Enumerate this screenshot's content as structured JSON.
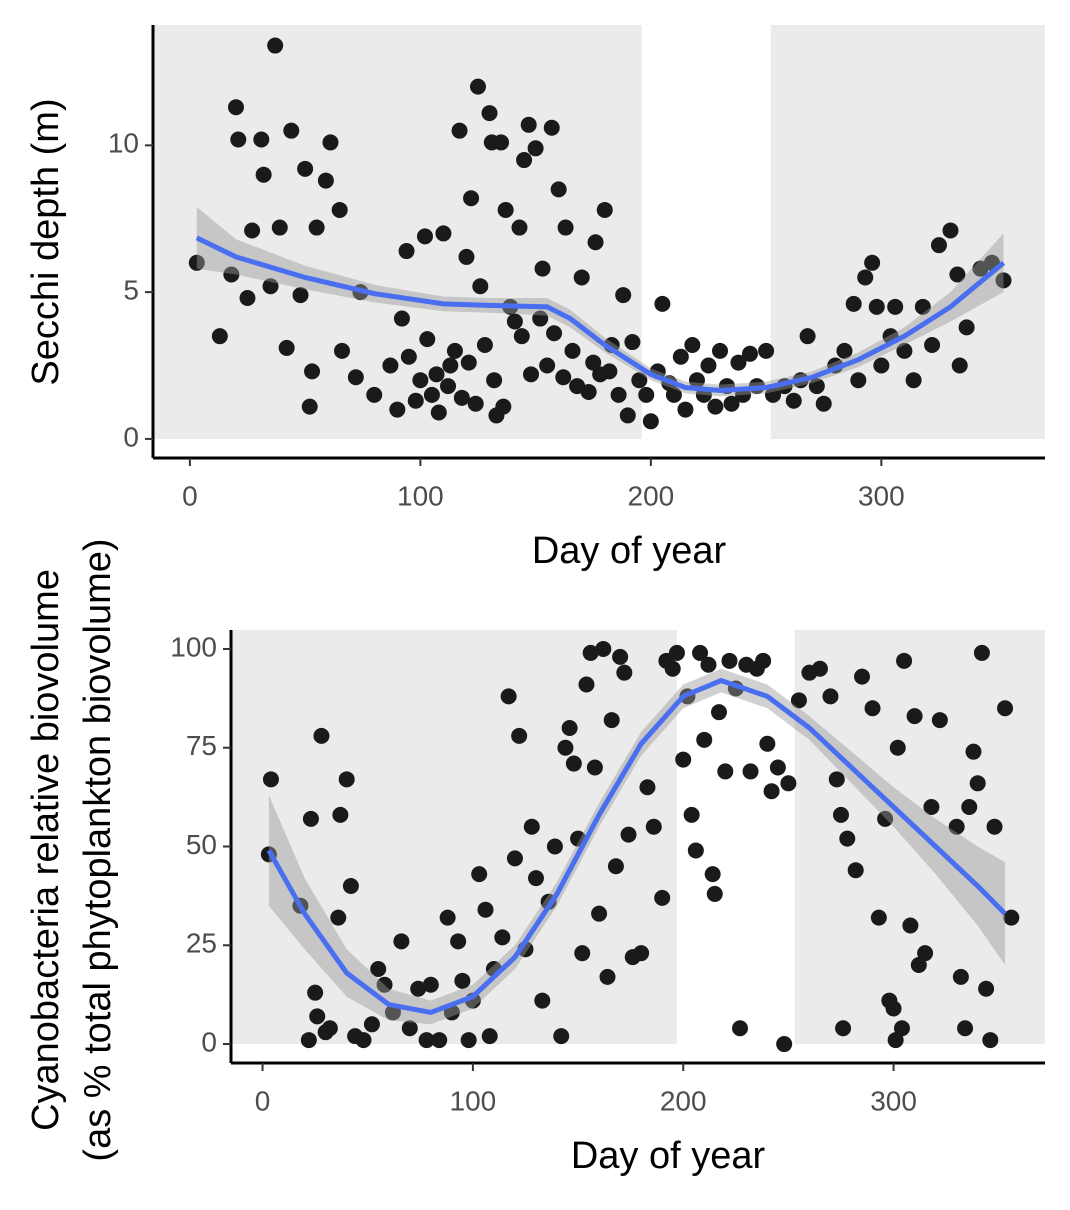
{
  "chart_data": [
    {
      "type": "scatter",
      "x_label": "Day of year",
      "y_label": [
        "Secchi depth (m)"
      ],
      "xlim": [
        -16,
        371
      ],
      "ylim": [
        -0.65,
        14.1
      ],
      "xticks": [
        0,
        100,
        200,
        300
      ],
      "yticks": [
        0,
        5,
        10
      ],
      "shaded_regions": [
        [
          -16,
          196
        ],
        [
          252,
          371
        ]
      ],
      "shade_color": "#ebebeb",
      "series": [
        {
          "color": "#1a1a1a",
          "x": [
            3,
            13,
            18,
            20,
            21,
            25,
            27,
            31,
            32,
            35,
            37,
            39,
            42,
            44,
            48,
            50,
            52,
            53,
            55,
            59,
            61,
            65,
            66,
            72,
            74,
            80,
            87,
            90,
            92,
            94,
            100,
            102,
            105,
            108,
            110,
            113,
            117,
            120,
            122,
            125,
            126,
            130,
            131,
            133,
            135,
            137,
            141,
            143,
            145,
            147,
            150,
            153,
            155,
            157,
            160,
            163,
            166,
            170,
            173,
            176,
            178,
            180,
            183,
            186,
            188,
            190,
            192,
            195,
            198,
            200,
            203,
            205,
            208,
            210,
            213,
            215,
            218,
            220,
            223,
            225,
            228,
            230,
            233,
            235,
            238,
            240,
            243,
            246,
            250,
            253,
            258,
            262,
            265,
            268,
            272,
            275,
            280,
            284,
            288,
            290,
            293,
            296,
            298,
            300,
            304,
            306,
            310,
            314,
            318,
            322,
            325,
            330,
            333,
            334,
            337,
            343,
            348,
            353,
            95,
            98,
            103,
            107,
            112,
            115,
            118,
            121,
            124,
            128,
            132,
            136,
            139,
            144,
            148,
            152,
            158,
            162,
            168,
            175,
            182
          ],
          "values": [
            6,
            3.5,
            5.6,
            11.3,
            10.2,
            4.8,
            7.1,
            10.2,
            9,
            5.2,
            13.4,
            7.2,
            3.1,
            10.5,
            4.9,
            9.2,
            1.1,
            2.3,
            7.2,
            8.8,
            10.1,
            7.8,
            3,
            2.1,
            5,
            1.5,
            2.5,
            1,
            4.1,
            6.4,
            2,
            6.9,
            1.5,
            0.9,
            7,
            2.5,
            10.5,
            6.2,
            8.2,
            12,
            5.2,
            11.1,
            10.1,
            0.8,
            10.1,
            7.8,
            4,
            7.2,
            9.5,
            10.7,
            9.9,
            5.8,
            2.5,
            10.6,
            8.5,
            7.2,
            3,
            5.5,
            1.6,
            6.7,
            2.2,
            7.8,
            3.2,
            1.5,
            4.9,
            0.8,
            3.3,
            2,
            1.5,
            0.6,
            2.3,
            4.6,
            1.9,
            1.5,
            2.8,
            1,
            3.2,
            2,
            1.5,
            2.5,
            1.1,
            3,
            1.8,
            1.2,
            2.6,
            1.5,
            2.9,
            1.8,
            3,
            1.5,
            1.8,
            1.3,
            2,
            3.5,
            1.8,
            1.2,
            2.5,
            3,
            4.6,
            2,
            5.5,
            6,
            4.5,
            2.5,
            3.5,
            4.5,
            3,
            2,
            4.5,
            3.2,
            6.6,
            7.1,
            5.6,
            2.5,
            3.8,
            5.8,
            6,
            5.4,
            2.8,
            1.3,
            3.4,
            2.2,
            1.8,
            3,
            1.4,
            2.6,
            1.2,
            3.2,
            2,
            1.1,
            4.5,
            3.5,
            2.2,
            4.1,
            3.6,
            2.1,
            1.8,
            2.6,
            2.3
          ]
        }
      ],
      "smooth": {
        "color": "#4a6ef0",
        "band_color": "#999999",
        "x": [
          3,
          20,
          50,
          80,
          110,
          130,
          155,
          165,
          180,
          200,
          215,
          230,
          250,
          270,
          290,
          310,
          330,
          353
        ],
        "y": [
          6.85,
          6.2,
          5.5,
          4.95,
          4.6,
          4.55,
          4.5,
          4.1,
          3.2,
          2.2,
          1.75,
          1.65,
          1.75,
          2.1,
          2.7,
          3.5,
          4.5,
          6
        ],
        "lower": [
          5.8,
          5.6,
          5.1,
          4.65,
          4.35,
          4.3,
          4.2,
          3.8,
          2.95,
          2,
          1.55,
          1.45,
          1.55,
          1.9,
          2.45,
          3.2,
          4,
          5
        ],
        "upper": [
          7.9,
          6.8,
          5.9,
          5.25,
          4.85,
          4.8,
          4.8,
          4.4,
          3.45,
          2.4,
          1.95,
          1.85,
          1.95,
          2.3,
          2.95,
          3.8,
          5,
          7
        ]
      }
    },
    {
      "type": "scatter",
      "x_label": "Day of year",
      "y_label": [
        "Cyanobacteria relative biovolume",
        "(as % total phytoplankton biovolume)"
      ],
      "xlim": [
        -15,
        372
      ],
      "ylim": [
        -4.8,
        104.8
      ],
      "xticks": [
        0,
        100,
        200,
        300
      ],
      "yticks": [
        0,
        25,
        50,
        75,
        100
      ],
      "shaded_regions": [
        [
          -15,
          197
        ],
        [
          253,
          372
        ]
      ],
      "shade_color": "#ebebeb",
      "series": [
        {
          "color": "#1a1a1a",
          "x": [
            3,
            4,
            18,
            22,
            23,
            25,
            26,
            28,
            30,
            32,
            36,
            37,
            40,
            42,
            44,
            48,
            52,
            55,
            58,
            62,
            66,
            70,
            74,
            78,
            80,
            84,
            88,
            90,
            93,
            95,
            98,
            100,
            103,
            106,
            108,
            110,
            114,
            117,
            120,
            122,
            125,
            128,
            130,
            133,
            136,
            139,
            142,
            144,
            146,
            148,
            150,
            152,
            154,
            156,
            158,
            160,
            162,
            164,
            166,
            168,
            170,
            172,
            174,
            176,
            180,
            183,
            186,
            190,
            192,
            195,
            197,
            200,
            202,
            204,
            206,
            208,
            210,
            212,
            214,
            215,
            217,
            220,
            222,
            225,
            227,
            230,
            232,
            235,
            238,
            240,
            242,
            245,
            248,
            250,
            255,
            260,
            265,
            270,
            273,
            275,
            276,
            278,
            282,
            285,
            290,
            293,
            296,
            298,
            300,
            301,
            302,
            304,
            305,
            308,
            310,
            312,
            315,
            318,
            322,
            330,
            332,
            334,
            336,
            338,
            340,
            342,
            344,
            346,
            348,
            353,
            356
          ],
          "values": [
            48,
            67,
            35,
            1,
            57,
            13,
            7,
            78,
            3,
            4,
            32,
            58,
            67,
            40,
            2,
            1,
            5,
            19,
            15,
            8,
            26,
            4,
            14,
            1,
            15,
            1,
            32,
            8,
            26,
            16,
            1,
            11,
            43,
            34,
            2,
            19,
            27,
            88,
            47,
            78,
            24,
            55,
            42,
            11,
            36,
            50,
            2,
            75,
            80,
            71,
            52,
            23,
            91,
            99,
            70,
            33,
            100,
            17,
            82,
            45,
            98,
            94,
            53,
            22,
            23,
            65,
            55,
            37,
            97,
            95,
            99,
            72,
            88,
            58,
            49,
            99,
            77,
            96,
            43,
            38,
            84,
            69,
            97,
            90,
            4,
            96,
            69,
            95,
            97,
            76,
            64,
            70,
            0,
            66,
            87,
            94,
            95,
            88,
            67,
            58,
            4,
            52,
            44,
            93,
            85,
            32,
            57,
            11,
            9,
            1,
            75,
            4,
            97,
            30,
            83,
            20,
            23,
            60,
            82,
            55,
            17,
            4,
            60,
            74,
            66,
            99,
            14,
            1,
            55,
            85,
            32
          ]
        }
      ],
      "smooth": {
        "color": "#4a6ef0",
        "band_color": "#999999",
        "x": [
          3,
          20,
          40,
          60,
          80,
          100,
          120,
          140,
          160,
          180,
          200,
          218,
          240,
          260,
          280,
          300,
          320,
          340,
          353
        ],
        "y": [
          49,
          33,
          18,
          10,
          8,
          12,
          22,
          38,
          58,
          76,
          88,
          92,
          88,
          80,
          70,
          60,
          50,
          40,
          33
        ],
        "lower": [
          35,
          24,
          12,
          6,
          5,
          9,
          19,
          35,
          55,
          73,
          85,
          89,
          85,
          77,
          66,
          55,
          43,
          30,
          20
        ],
        "upper": [
          63,
          42,
          24,
          14,
          11,
          15,
          25,
          41,
          61,
          79,
          91,
          95,
          91,
          83,
          74,
          65,
          57,
          50,
          46
        ]
      }
    }
  ]
}
